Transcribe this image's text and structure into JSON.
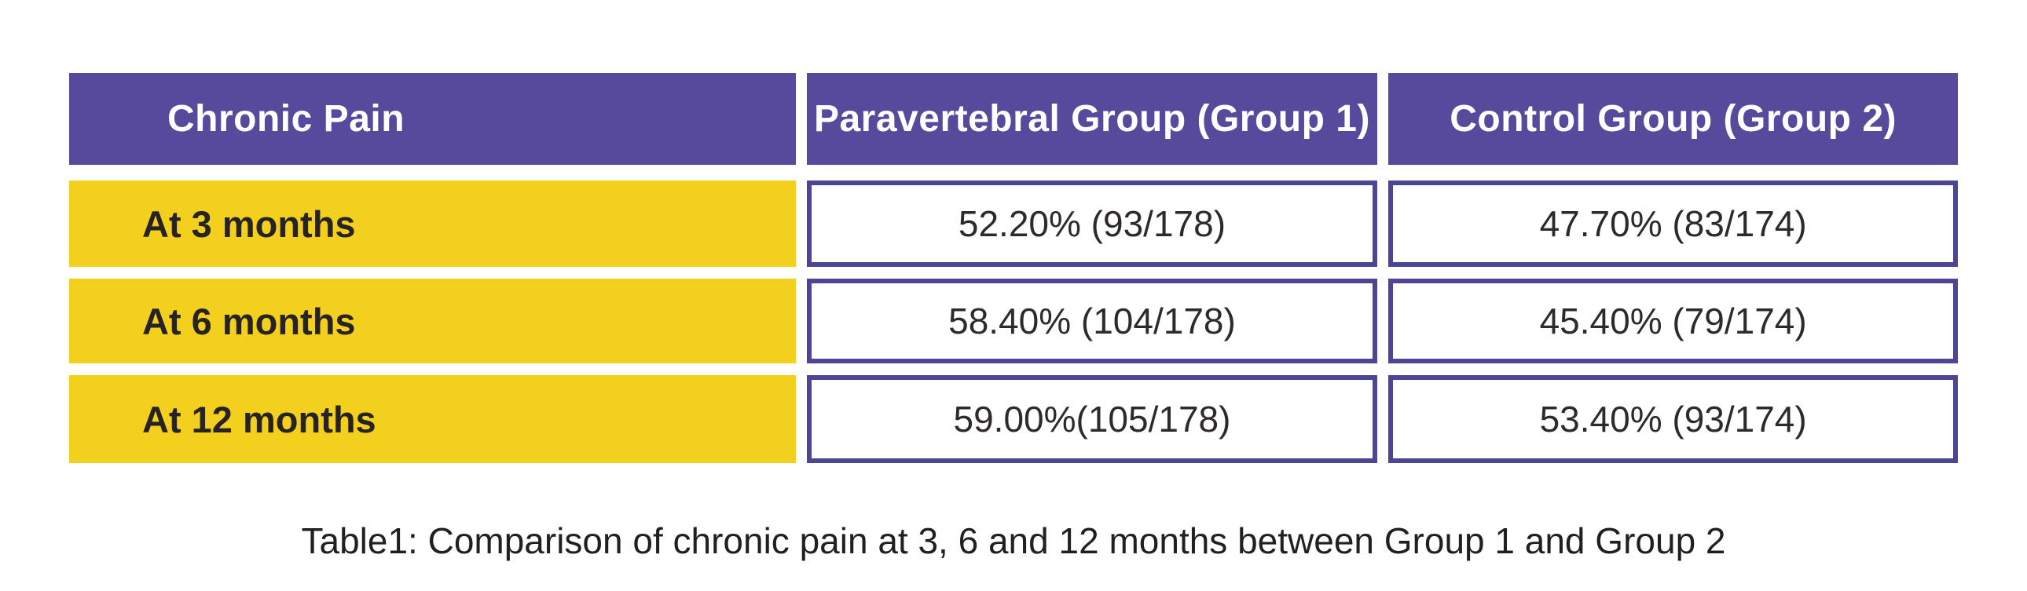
{
  "table": {
    "columns": {
      "label": "Chronic Pain",
      "group1": "Paravertebral Group (Group 1)",
      "group2": "Control Group (Group 2)"
    },
    "rows": [
      {
        "label": "At 3 months",
        "group1": "52.20% (93/178)",
        "group2": "47.70% (83/174)"
      },
      {
        "label": "At 6 months",
        "group1": "58.40% (104/178)",
        "group2": "45.40% (79/174)"
      },
      {
        "label": "At 12 months",
        "group1": "59.00%(105/178)",
        "group2": "53.40% (93/174)"
      }
    ]
  },
  "caption": "Table1: Comparison of chronic pain at 3, 6 and 12 months between Group 1 and Group 2",
  "chart_data": {
    "type": "table",
    "title": "Table1: Comparison of chronic pain at 3, 6 and 12 months between Group 1 and Group 2",
    "columns": [
      "Chronic Pain",
      "Paravertebral Group (Group 1)",
      "Control Group (Group 2)"
    ],
    "categories": [
      "At 3 months",
      "At 6 months",
      "At 12 months"
    ],
    "series": [
      {
        "name": "Paravertebral Group (Group 1)",
        "values": [
          52.2,
          58.4,
          59.0
        ],
        "counts": [
          "93/178",
          "104/178",
          "105/178"
        ]
      },
      {
        "name": "Control Group (Group 2)",
        "values": [
          47.7,
          45.4,
          53.4
        ],
        "counts": [
          "83/174",
          "79/174",
          "93/174"
        ]
      }
    ]
  },
  "colors": {
    "background": "#ffffff",
    "headerBg": "#574a9c",
    "headerText": "#ffffff",
    "rowLabelBg": "#f4d01e",
    "rowLabelText": "#272325",
    "cellBorder": "#4c4494",
    "dataCellBg": "#ffffff",
    "dataText": "#2e2a2b",
    "captionText": "#231f20"
  }
}
